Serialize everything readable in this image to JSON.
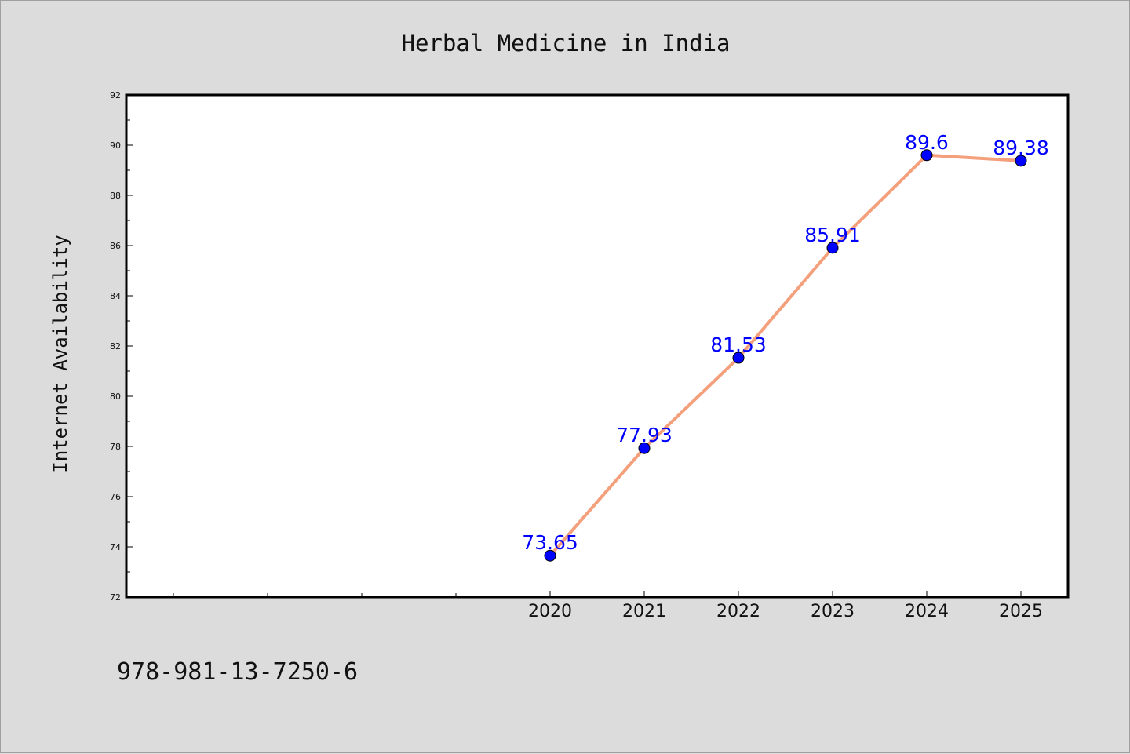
{
  "chart_data": {
    "type": "line",
    "title": "Herbal Medicine in India",
    "xlabel": "",
    "ylabel": "Internet Availability",
    "categories": [
      "2020",
      "2021",
      "2022",
      "2023",
      "2024",
      "2025"
    ],
    "series": [
      {
        "values": [
          73.65,
          77.93,
          81.53,
          85.91,
          89.6,
          89.38
        ],
        "labels": [
          "73.65",
          "77.93",
          "81.53",
          "85.91",
          "89.6",
          "89.38"
        ],
        "line_color": "#f4a07c",
        "marker_color": "#0000ff",
        "label_color": "#0000ff"
      }
    ],
    "ylim": [
      72,
      92
    ],
    "yticks": [
      72,
      74,
      76,
      78,
      80,
      82,
      84,
      86,
      88,
      90,
      92
    ],
    "yticks_labels": [
      "72",
      "74",
      "76",
      "78",
      "80",
      "82",
      "84",
      "86",
      "88",
      "90",
      "92"
    ],
    "grid": false,
    "legend": "none"
  },
  "footer_text": "978-981-13-7250-6"
}
